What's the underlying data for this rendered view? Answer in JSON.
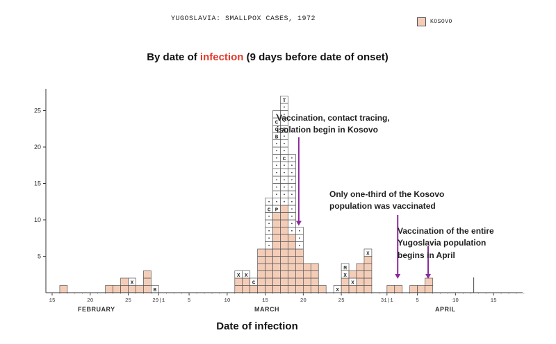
{
  "header": {
    "title": "YUGOSLAVIA:  SMALLPOX CASES, 1972",
    "legend_label": "KOSOVO",
    "subtitle_before": "By date of ",
    "subtitle_highlight": "infection",
    "subtitle_after": " (9 days before date of onset)"
  },
  "annotations": {
    "a1_line1": "Vaccination, contact tracing,",
    "a1_line2": "isolation begin in Kosovo",
    "a2_line1": "Only one-third of the Kosovo",
    "a2_line2": "population was vaccinated",
    "a3_line1": "Vaccination of the entire",
    "a3_line2": "Yugoslavia population",
    "a3_line3": "begins in April"
  },
  "months": {
    "feb": "FEBRUARY",
    "mar": "MARCH",
    "apr": "APRIL"
  },
  "colors": {
    "bar": "#f4cdb8",
    "outline": "#555555",
    "arrow": "#8b2a9b",
    "highlight": "#e23b2a"
  },
  "chart_data": {
    "type": "bar",
    "title": "YUGOSLAVIA: SMALLPOX CASES, 1972",
    "subtitle": "By date of infection (9 days before date of onset)",
    "xlabel": "Date of infection",
    "ylabel": "",
    "ylim": [
      0,
      27
    ],
    "yticks": [
      5,
      10,
      15,
      20,
      25
    ],
    "x_tick_labels": [
      "15",
      "20",
      "25",
      "29|1",
      "5",
      "10",
      "15",
      "20",
      "25",
      "31|1",
      "5",
      "10",
      "15"
    ],
    "x_tick_day_index": [
      0,
      5,
      10,
      14,
      18,
      23,
      28,
      33,
      38,
      44,
      48,
      53,
      58
    ],
    "start_date": "Feb 15",
    "series": [
      {
        "name": "Kosovo",
        "day_index": [
          1,
          7,
          8,
          9,
          10,
          11,
          12,
          13,
          24,
          25,
          26,
          27,
          28,
          29,
          30,
          31,
          32,
          33,
          34,
          35,
          37,
          38,
          39,
          40,
          41,
          44,
          45,
          47,
          48,
          49
        ],
        "values": [
          1,
          1,
          1,
          2,
          2,
          1,
          3,
          1,
          3,
          3,
          2,
          6,
          13,
          25,
          27,
          19,
          9,
          4,
          4,
          1,
          1,
          4,
          3,
          4,
          6,
          1,
          1,
          1,
          1,
          2
        ]
      }
    ],
    "cell_markers": [
      {
        "day_index": 10,
        "level": 2,
        "mark": "X"
      },
      {
        "day_index": 13,
        "level": 1,
        "mark": "B"
      },
      {
        "day_index": 24,
        "level": 3,
        "mark": "X"
      },
      {
        "day_index": 25,
        "level": 3,
        "mark": "X"
      },
      {
        "day_index": 26,
        "level": 2,
        "mark": "C"
      },
      {
        "day_index": 28,
        "level": 12,
        "mark": "C"
      },
      {
        "day_index": 29,
        "level": 24,
        "mark": "C"
      },
      {
        "day_index": 29,
        "level": 23,
        "mark": "C"
      },
      {
        "day_index": 29,
        "level": 22,
        "mark": "B"
      },
      {
        "day_index": 30,
        "level": 27,
        "mark": "T"
      },
      {
        "day_index": 30,
        "level": 23,
        "mark": "C"
      },
      {
        "day_index": 30,
        "level": 19,
        "mark": "C"
      },
      {
        "day_index": 29,
        "level": 12,
        "mark": "P"
      },
      {
        "day_index": 37,
        "level": 1,
        "mark": "X"
      },
      {
        "day_index": 38,
        "level": 4,
        "mark": "M"
      },
      {
        "day_index": 38,
        "level": 3,
        "mark": "X"
      },
      {
        "day_index": 39,
        "level": 2,
        "mark": "X"
      },
      {
        "day_index": 41,
        "level": 6,
        "mark": "X"
      }
    ],
    "events": [
      {
        "label": "Vaccination, contact tracing, isolation begin in Kosovo",
        "day_index": 32
      },
      {
        "label": "Only one-third of the Kosovo population was vaccinated",
        "day_index": 45
      },
      {
        "label": "Vaccination of the entire Yugoslavia population begins in April",
        "day_index": 49
      }
    ],
    "legend": [
      "KOSOVO"
    ]
  }
}
